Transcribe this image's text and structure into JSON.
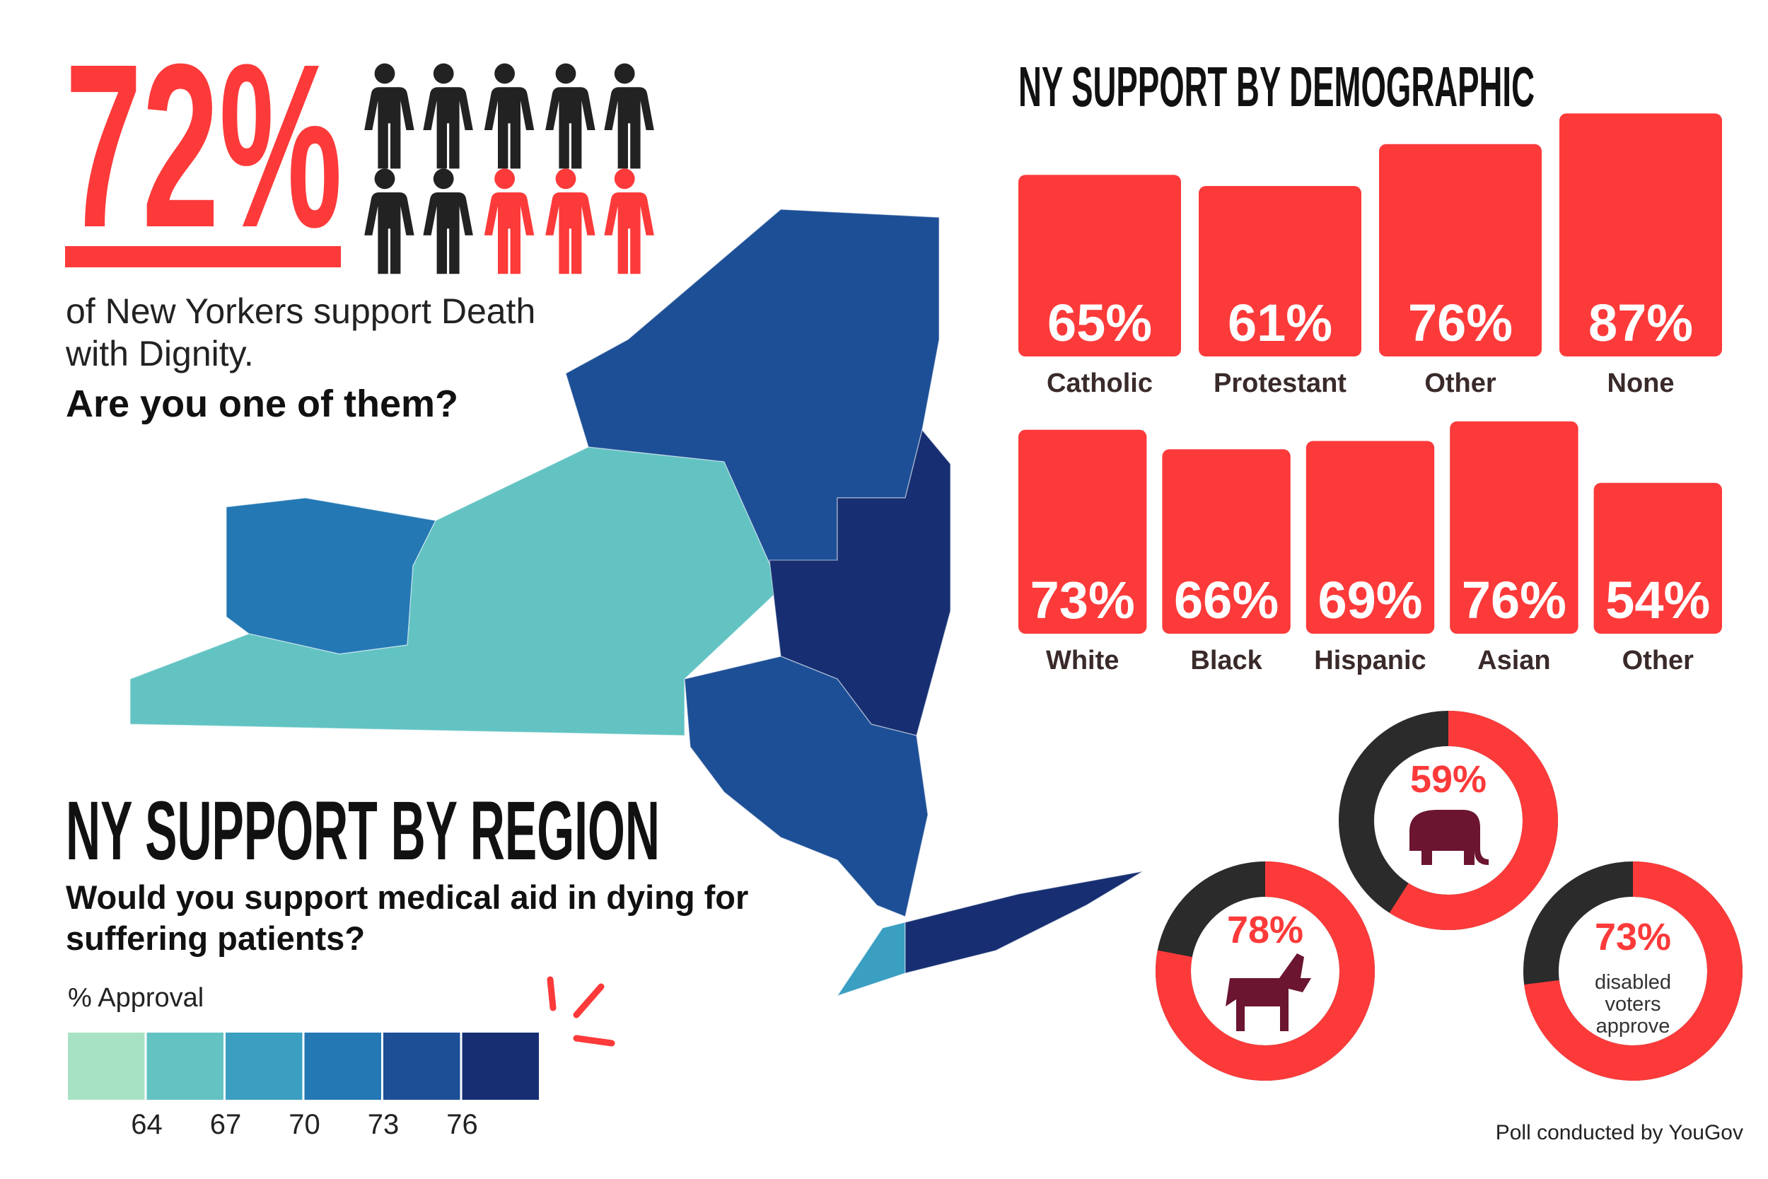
{
  "headline": {
    "stat": "72%",
    "text": "of New Yorkers support Death with Dignity.",
    "question": "Are you one of them?"
  },
  "chart_data": [
    {
      "type": "bar",
      "title": "NY SUPPORT BY DEMOGRAPHIC",
      "categories": [
        "Catholic",
        "Protestant",
        "Other",
        "None"
      ],
      "values": [
        65,
        61,
        76,
        87
      ],
      "value_labels": [
        "65%",
        "61%",
        "76%",
        "87%"
      ],
      "color": "#fc3a3a",
      "ylim": [
        0,
        100
      ]
    },
    {
      "type": "bar",
      "categories": [
        "White",
        "Black",
        "Hispanic",
        "Asian",
        "Other"
      ],
      "values": [
        73,
        66,
        69,
        76,
        54
      ],
      "value_labels": [
        "73%",
        "66%",
        "69%",
        "76%",
        "54%"
      ],
      "color": "#fc3a3a",
      "ylim": [
        0,
        100
      ]
    },
    {
      "type": "donut",
      "values": [
        59
      ],
      "value_labels": [
        "59%"
      ],
      "color": "#fc3a3a",
      "track_color": "#2b2b2b"
    },
    {
      "type": "donut",
      "values": [
        78
      ],
      "value_labels": [
        "78%"
      ],
      "color": "#fc3a3a",
      "track_color": "#2b2b2b"
    },
    {
      "type": "donut",
      "values": [
        73
      ],
      "value_labels": [
        "73%"
      ],
      "caption": "disabled voters approve",
      "color": "#fc3a3a",
      "track_color": "#2b2b2b"
    }
  ],
  "map": {
    "title": "NY SUPPORT BY REGION",
    "subtitle": "Would you support medical aid in dying for suffering patients?",
    "legend": {
      "title": "% Approval",
      "colors": [
        "#a8e2c4",
        "#63c3c3",
        "#3a9fc1",
        "#2478b4",
        "#1d4f96",
        "#172f72"
      ],
      "xlim": [
        61,
        79
      ],
      "xticks": [
        64,
        67,
        70,
        73,
        76
      ]
    }
  },
  "footer": "Poll conducted by YouGov"
}
